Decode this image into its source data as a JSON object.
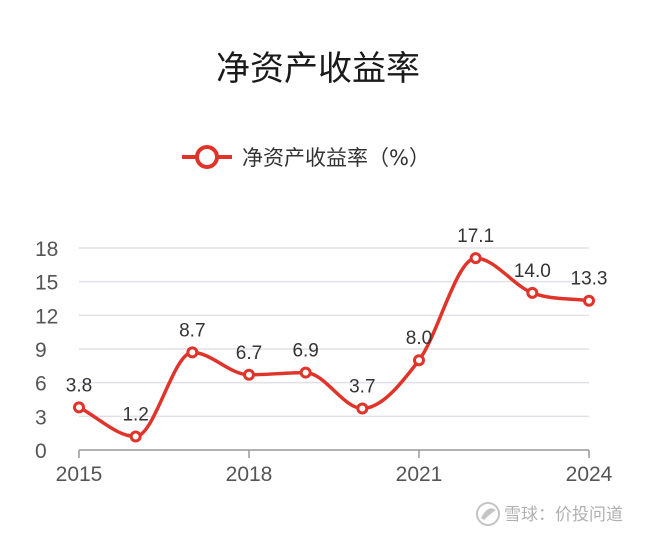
{
  "chart_data": {
    "type": "line",
    "title": "净资产收益率",
    "x": [
      2015,
      2016,
      2017,
      2018,
      2019,
      2020,
      2021,
      2022,
      2023,
      2024
    ],
    "series": [
      {
        "name": "净资产收益率（%）",
        "values": [
          3.8,
          1.2,
          8.7,
          6.7,
          6.9,
          3.7,
          8.0,
          17.1,
          14.0,
          13.3
        ],
        "color": "#e0342a",
        "smooth": true
      }
    ],
    "data_labels": [
      "3.8",
      "1.2",
      "8.7",
      "6.7",
      "6.9",
      "3.7",
      "8.0",
      "17.1",
      "14.0",
      "13.3"
    ],
    "y_ticks": [
      "0",
      "3",
      "6",
      "9",
      "12",
      "15",
      "18"
    ],
    "x_ticks": [
      "2015",
      "2018",
      "2021",
      "2024"
    ],
    "ylim": [
      0,
      18
    ],
    "xlim": [
      2015,
      2024
    ],
    "xlabel": "",
    "ylabel": "",
    "grid": true,
    "legend_position": "top-center"
  },
  "watermark": {
    "text": "雪球：价投问道"
  },
  "colors": {
    "series": "#e0342a",
    "grid": "#e0e0e6",
    "axis": "#999999",
    "text": "#555555"
  }
}
